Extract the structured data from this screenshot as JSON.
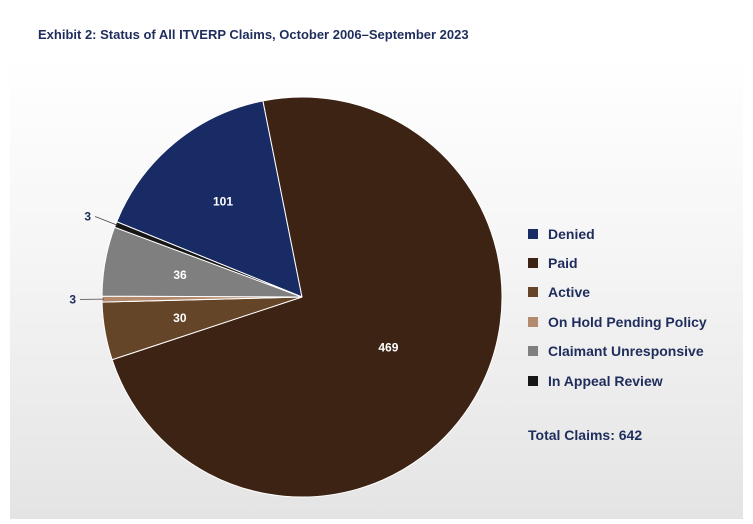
{
  "chart_data": {
    "type": "pie",
    "title": "Exhibit 2: Status of All ITVERP Claims, October 2006–September 2023",
    "slices": [
      {
        "label": "Denied",
        "value": 101,
        "color": "#182b64"
      },
      {
        "label": "Paid",
        "value": 469,
        "color": "#3c2314"
      },
      {
        "label": "Active",
        "value": 30,
        "color": "#654527"
      },
      {
        "label": "On Hold Pending Policy",
        "value": 3,
        "color": "#b38a6d"
      },
      {
        "label": "Claimant Unresponsive",
        "value": 36,
        "color": "#7f7f7f"
      },
      {
        "label": "In Appeal Review",
        "value": 3,
        "color": "#161616"
      }
    ],
    "legend_position": "right",
    "total_label": "Total Claims: 642"
  }
}
